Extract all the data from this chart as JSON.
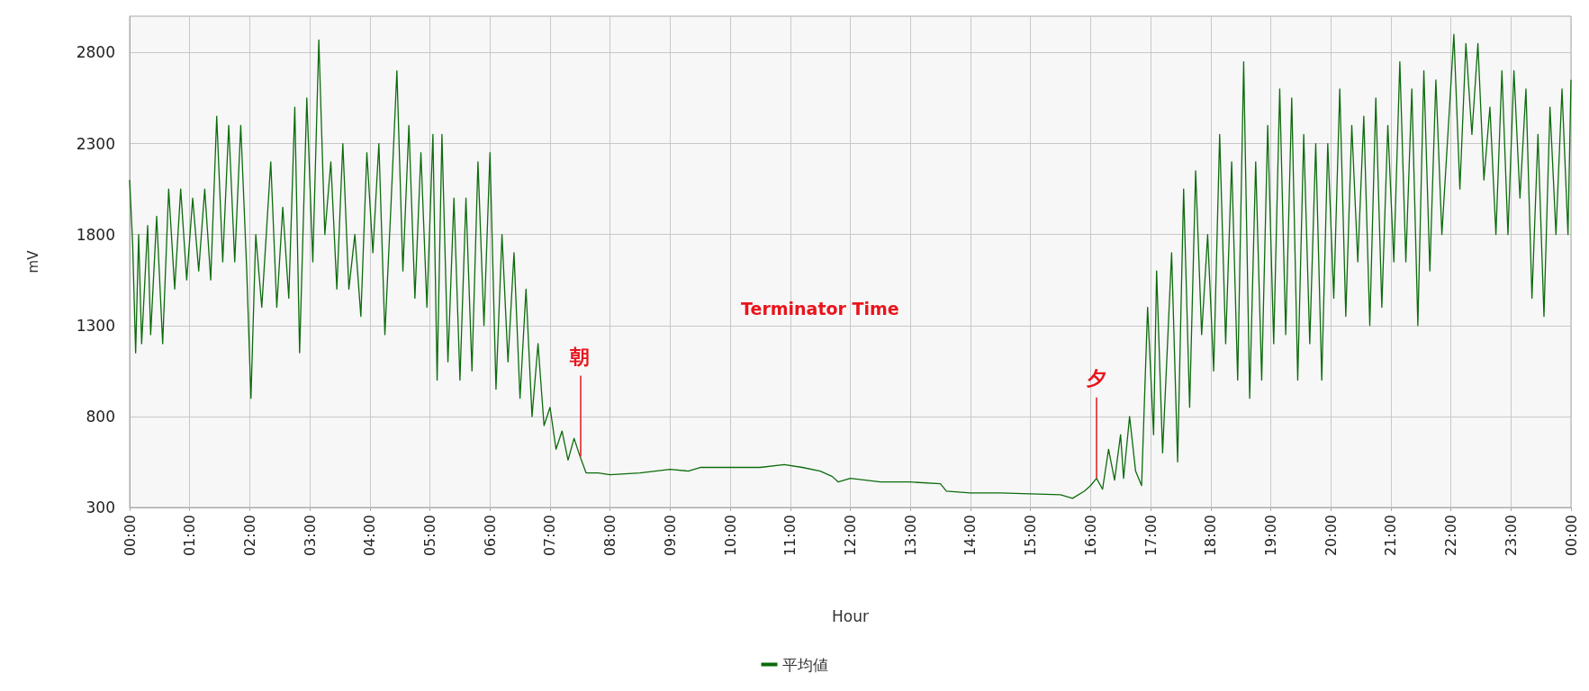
{
  "chart_data": {
    "type": "line",
    "xlabel": "Hour",
    "ylabel": "mV",
    "xlim": [
      0,
      24
    ],
    "ylim": [
      300,
      3000
    ],
    "xticks": [
      {
        "value": 0,
        "label": "00:00"
      },
      {
        "value": 1,
        "label": "01:00"
      },
      {
        "value": 2,
        "label": "02:00"
      },
      {
        "value": 3,
        "label": "03:00"
      },
      {
        "value": 4,
        "label": "04:00"
      },
      {
        "value": 5,
        "label": "05:00"
      },
      {
        "value": 6,
        "label": "06:00"
      },
      {
        "value": 7,
        "label": "07:00"
      },
      {
        "value": 8,
        "label": "08:00"
      },
      {
        "value": 9,
        "label": "09:00"
      },
      {
        "value": 10,
        "label": "10:00"
      },
      {
        "value": 11,
        "label": "11:00"
      },
      {
        "value": 12,
        "label": "12:00"
      },
      {
        "value": 13,
        "label": "13:00"
      },
      {
        "value": 14,
        "label": "14:00"
      },
      {
        "value": 15,
        "label": "15:00"
      },
      {
        "value": 16,
        "label": "16:00"
      },
      {
        "value": 17,
        "label": "17:00"
      },
      {
        "value": 18,
        "label": "18:00"
      },
      {
        "value": 19,
        "label": "19:00"
      },
      {
        "value": 20,
        "label": "20:00"
      },
      {
        "value": 21,
        "label": "21:00"
      },
      {
        "value": 22,
        "label": "22:00"
      },
      {
        "value": 23,
        "label": "23:00"
      },
      {
        "value": 24,
        "label": "00:00"
      }
    ],
    "yticks": [
      300,
      800,
      1300,
      1800,
      2300,
      2800
    ],
    "grid": true,
    "legend": "bottom",
    "marker": "none",
    "line_style": "solid",
    "annotations": [
      "Terminator Time",
      {
        "text": "朝",
        "x": 7.5,
        "y": 580
      },
      {
        "text": "夕",
        "x": 16.1,
        "y": 460
      }
    ],
    "series": [
      {
        "name": "平均値",
        "color": "#0d6b0d",
        "x": [
          0,
          0.05,
          0.1,
          0.15,
          0.2,
          0.3,
          0.35,
          0.45,
          0.55,
          0.65,
          0.75,
          0.85,
          0.95,
          1.05,
          1.15,
          1.25,
          1.35,
          1.45,
          1.55,
          1.65,
          1.75,
          1.85,
          1.95,
          2.02,
          2.1,
          2.2,
          2.35,
          2.45,
          2.55,
          2.65,
          2.75,
          2.83,
          2.95,
          3.05,
          3.15,
          3.25,
          3.35,
          3.45,
          3.55,
          3.65,
          3.75,
          3.85,
          3.95,
          4.05,
          4.15,
          4.25,
          4.35,
          4.45,
          4.55,
          4.65,
          4.75,
          4.85,
          4.95,
          5.05,
          5.12,
          5.2,
          5.3,
          5.4,
          5.5,
          5.6,
          5.7,
          5.8,
          5.9,
          6.0,
          6.1,
          6.2,
          6.3,
          6.4,
          6.5,
          6.6,
          6.7,
          6.8,
          6.9,
          7.0,
          7.1,
          7.2,
          7.3,
          7.4,
          7.5,
          7.6,
          7.8,
          8.0,
          8.5,
          9.0,
          9.3,
          9.5,
          10.0,
          10.5,
          10.9,
          11.2,
          11.5,
          11.7,
          11.8,
          12.0,
          12.5,
          13.0,
          13.5,
          13.6,
          14.0,
          14.5,
          15.0,
          15.5,
          15.7,
          15.9,
          16.0,
          16.1,
          16.2,
          16.3,
          16.4,
          16.5,
          16.55,
          16.65,
          16.75,
          16.85,
          16.95,
          17.05,
          17.1,
          17.2,
          17.35,
          17.45,
          17.55,
          17.65,
          17.75,
          17.85,
          17.95,
          18.05,
          18.15,
          18.25,
          18.35,
          18.45,
          18.55,
          18.65,
          18.75,
          18.85,
          18.95,
          19.05,
          19.15,
          19.25,
          19.35,
          19.45,
          19.55,
          19.65,
          19.75,
          19.85,
          19.95,
          20.05,
          20.15,
          20.25,
          20.35,
          20.45,
          20.55,
          20.65,
          20.75,
          20.85,
          20.95,
          21.05,
          21.15,
          21.25,
          21.35,
          21.45,
          21.55,
          21.65,
          21.75,
          21.85,
          21.95,
          22.05,
          22.15,
          22.25,
          22.35,
          22.45,
          22.55,
          22.65,
          22.75,
          22.85,
          22.95,
          23.05,
          23.15,
          23.25,
          23.35,
          23.45,
          23.55,
          23.65,
          23.75,
          23.85,
          23.95,
          24
        ],
        "values": [
          2100,
          1750,
          1150,
          1800,
          1200,
          1850,
          1250,
          1900,
          1200,
          2050,
          1500,
          2050,
          1550,
          2000,
          1600,
          2050,
          1550,
          2450,
          1650,
          2400,
          1650,
          2400,
          1600,
          900,
          1800,
          1400,
          2200,
          1400,
          1950,
          1450,
          2500,
          1150,
          2550,
          1650,
          2870,
          1800,
          2200,
          1500,
          2300,
          1500,
          1800,
          1350,
          2250,
          1700,
          2300,
          1250,
          1950,
          2700,
          1600,
          2400,
          1450,
          2250,
          1400,
          2350,
          1000,
          2350,
          1100,
          2000,
          1000,
          2000,
          1050,
          2200,
          1300,
          2250,
          950,
          1800,
          1100,
          1700,
          900,
          1500,
          800,
          1200,
          750,
          850,
          620,
          720,
          560,
          680,
          580,
          490,
          490,
          480,
          490,
          510,
          500,
          520,
          520,
          520,
          535,
          520,
          500,
          470,
          440,
          460,
          440,
          440,
          430,
          390,
          380,
          380,
          375,
          370,
          350,
          390,
          420,
          460,
          400,
          620,
          450,
          700,
          460,
          800,
          500,
          420,
          1400,
          700,
          1600,
          600,
          1700,
          550,
          2050,
          850,
          2150,
          1250,
          1800,
          1050,
          2350,
          1200,
          2200,
          1000,
          2750,
          900,
          2200,
          1000,
          2400,
          1200,
          2600,
          1250,
          2550,
          1000,
          2350,
          1200,
          2300,
          1000,
          2300,
          1450,
          2600,
          1350,
          2400,
          1650,
          2450,
          1300,
          2550,
          1400,
          2400,
          1650,
          2750,
          1650,
          2600,
          1300,
          2700,
          1600,
          2650,
          1800,
          2350,
          2900,
          2050,
          2850,
          2350,
          2850,
          2100,
          2500,
          1800,
          2700,
          1800,
          2700,
          2000,
          2600,
          1450,
          2350,
          1350,
          2500,
          1800,
          2600,
          1800,
          2650
        ]
      }
    ]
  }
}
